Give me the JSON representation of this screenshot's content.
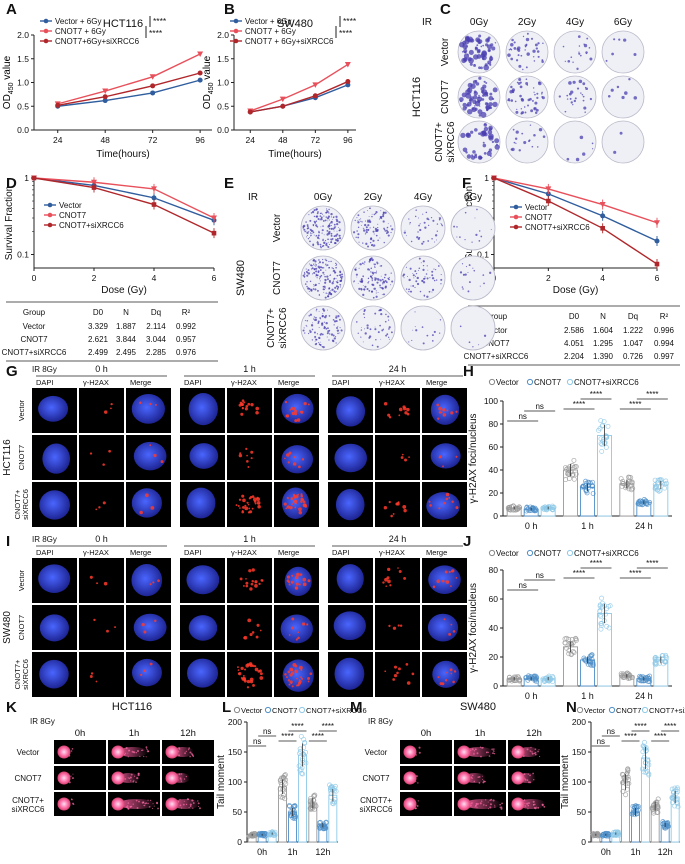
{
  "colors": {
    "vector": "#2f5d9e",
    "cnot7": "#e8505b",
    "cnot7_si": "#b0272b",
    "bar_vector": "#c8c8c8",
    "bar_cnot7": "#4f8fc8",
    "bar_si": "#8ec9e8",
    "dish_bg": "#eef0f6",
    "colony": "#4b3fb0"
  },
  "panels": {
    "A": "A",
    "B": "B",
    "C": "C",
    "D": "D",
    "E": "E",
    "F": "F",
    "G": "G",
    "H": "H",
    "I": "I",
    "J": "J",
    "K": "K",
    "L": "L",
    "M": "M",
    "N": "N"
  },
  "chart_data": [
    {
      "id": "A",
      "type": "line",
      "title": "HCT116",
      "xlabel": "Time(hours)",
      "ylabel": "OD450 value",
      "x": [
        24,
        48,
        72,
        96
      ],
      "ylim": [
        0,
        2.0
      ],
      "yticks": [
        "0.0",
        "0.5",
        "1.0",
        "1.5",
        "2.0"
      ],
      "series": [
        {
          "name": "Vector + 6Gy",
          "values": [
            0.5,
            0.62,
            0.78,
            1.05
          ]
        },
        {
          "name": "CNOT7 + 6Gy",
          "values": [
            0.55,
            0.82,
            1.12,
            1.6
          ]
        },
        {
          "name": "CNOT7+6Gy+siXRCC6",
          "values": [
            0.52,
            0.7,
            0.93,
            1.2
          ]
        }
      ],
      "annotations": [
        "****",
        "****"
      ]
    },
    {
      "id": "B",
      "type": "line",
      "title": "SW480",
      "xlabel": "Time(hours)",
      "ylabel": "OD450 value",
      "x": [
        24,
        48,
        72,
        96
      ],
      "ylim": [
        0,
        2.0
      ],
      "yticks": [
        "0.0",
        "0.5",
        "1.0",
        "1.5",
        "2.0"
      ],
      "series": [
        {
          "name": "Vector + 6Gy",
          "values": [
            0.38,
            0.5,
            0.68,
            0.95
          ]
        },
        {
          "name": "CNOT7 + 6Gy",
          "values": [
            0.4,
            0.65,
            0.95,
            1.38
          ]
        },
        {
          "name": "CNOT7 + 6Gy+siXRCC6",
          "values": [
            0.38,
            0.5,
            0.72,
            1.02
          ]
        }
      ],
      "annotations": [
        "****",
        "****"
      ]
    },
    {
      "id": "D",
      "type": "line",
      "scale": "log",
      "xlabel": "Dose (Gy)",
      "ylabel": "Survival Fraction",
      "x": [
        0,
        2,
        4,
        6
      ],
      "yticks": [
        "1",
        "0.1"
      ],
      "series": [
        {
          "name": "Vector",
          "values": [
            1,
            0.8,
            0.55,
            0.28
          ]
        },
        {
          "name": "CNOT7",
          "values": [
            1,
            0.88,
            0.72,
            0.3
          ]
        },
        {
          "name": "CNOT7+siXRCC6",
          "values": [
            1,
            0.75,
            0.45,
            0.19
          ]
        }
      ],
      "table": {
        "headers": [
          "Group",
          "D0",
          "N",
          "Dq",
          "R²"
        ],
        "rows": [
          [
            "Vector",
            "3.329",
            "1.887",
            "2.114",
            "0.992"
          ],
          [
            "CNOT7",
            "2.621",
            "3.844",
            "3.044",
            "0.957"
          ],
          [
            "CNOT7+siXRCC6",
            "2.499",
            "2.495",
            "2.285",
            "0.976"
          ]
        ]
      }
    },
    {
      "id": "F",
      "type": "line",
      "scale": "log",
      "xlabel": "Dose (Gy)",
      "ylabel": "Survival Fraction",
      "x": [
        0,
        2,
        4,
        6
      ],
      "yticks": [
        "1",
        "0.1"
      ],
      "series": [
        {
          "name": "Vector",
          "values": [
            1,
            0.62,
            0.32,
            0.15
          ]
        },
        {
          "name": "CNOT7",
          "values": [
            1,
            0.72,
            0.45,
            0.26
          ]
        },
        {
          "name": "CNOT7+siXRCC6",
          "values": [
            1,
            0.5,
            0.22,
            0.075
          ]
        }
      ],
      "table": {
        "headers": [
          "Group",
          "D0",
          "N",
          "Dq",
          "R²"
        ],
        "rows": [
          [
            "Vector",
            "2.586",
            "1.604",
            "1.222",
            "0.996"
          ],
          [
            "CNOT7",
            "4.051",
            "1.295",
            "1.047",
            "0.994"
          ],
          [
            "CNOT7+siXRCC6",
            "2.204",
            "1.390",
            "0.726",
            "0.997"
          ]
        ]
      }
    },
    {
      "id": "H",
      "type": "bar",
      "ylabel": "γ-H2AX foci/nucleus",
      "categories": [
        "0 h",
        "1 h",
        "24 h"
      ],
      "ylim": [
        0,
        100
      ],
      "yticks": [
        "0",
        "20",
        "40",
        "60",
        "80",
        "100"
      ],
      "legend": [
        "Vector",
        "CNOT7",
        "CNOT7+siXRCC6"
      ],
      "series": [
        {
          "name": "Vector",
          "values": [
            7,
            40,
            28
          ]
        },
        {
          "name": "CNOT7",
          "values": [
            6,
            25,
            12
          ]
        },
        {
          "name": "CNOT7+siXRCC6",
          "values": [
            7,
            70,
            27
          ]
        }
      ],
      "sig": [
        "ns",
        "ns",
        "****",
        "****",
        "****",
        "****"
      ]
    },
    {
      "id": "J",
      "type": "bar",
      "ylabel": "γ-H2AX foci/nucleus",
      "categories": [
        "0 h",
        "1 h",
        "24 h"
      ],
      "ylim": [
        0,
        80
      ],
      "yticks": [
        "0",
        "20",
        "40",
        "60",
        "80"
      ],
      "legend": [
        "Vector",
        "CNOT7",
        "CNOT7+siXRCC6"
      ],
      "series": [
        {
          "name": "Vector",
          "values": [
            5,
            27,
            7
          ]
        },
        {
          "name": "CNOT7",
          "values": [
            5,
            18,
            5
          ]
        },
        {
          "name": "CNOT7+siXRCC6",
          "values": [
            5,
            50,
            18
          ]
        }
      ],
      "sig": [
        "ns",
        "ns",
        "****",
        "****",
        "****",
        "****"
      ]
    },
    {
      "id": "L",
      "type": "bar",
      "ylabel": "Tail moment",
      "categories": [
        "0h",
        "1h",
        "12h"
      ],
      "ylim": [
        0,
        200
      ],
      "yticks": [
        "0",
        "50",
        "100",
        "150",
        "200"
      ],
      "legend": [
        "Vector",
        "CNOT7",
        "CNOT7+siXRCC6"
      ],
      "series": [
        {
          "name": "Vector",
          "values": [
            12,
            92,
            65
          ]
        },
        {
          "name": "CNOT7",
          "values": [
            12,
            50,
            28
          ]
        },
        {
          "name": "CNOT7+siXRCC6",
          "values": [
            14,
            145,
            78
          ]
        }
      ],
      "sig": [
        "ns",
        "ns",
        "****",
        "****",
        "****",
        "****"
      ]
    },
    {
      "id": "N",
      "type": "bar",
      "ylabel": "Tail moment",
      "categories": [
        "0h",
        "1h",
        "12h"
      ],
      "ylim": [
        0,
        200
      ],
      "yticks": [
        "0",
        "50",
        "100",
        "150",
        "200"
      ],
      "legend": [
        "Vector",
        "CNOT7",
        "CNOT7+siXRCC6"
      ],
      "series": [
        {
          "name": "Vector",
          "values": [
            12,
            100,
            60
          ]
        },
        {
          "name": "CNOT7",
          "values": [
            12,
            50,
            28
          ]
        },
        {
          "name": "CNOT7+siXRCC6",
          "values": [
            14,
            140,
            75
          ]
        }
      ],
      "sig": [
        "ns",
        "ns",
        "****",
        "****",
        "****",
        "****"
      ]
    }
  ],
  "colony": {
    "C": {
      "cell": "HCT116",
      "ir": "IR",
      "doses": [
        "0Gy",
        "2Gy",
        "4Gy",
        "6Gy"
      ],
      "rows": [
        "Vector",
        "CNOT7",
        "CNOT7+",
        "siXRCC6"
      ]
    },
    "E": {
      "cell": "SW480",
      "ir": "IR",
      "doses": [
        "0Gy",
        "2Gy",
        "4Gy",
        "6Gy"
      ],
      "rows": [
        "Vector",
        "CNOT7",
        "CNOT7+",
        "siXRCC6"
      ]
    }
  },
  "if": {
    "G": {
      "cell": "HCT116",
      "ir": "IR 8Gy",
      "times": [
        "0 h",
        "1 h",
        "24 h"
      ],
      "channels": [
        "DAPI",
        "γ-H2AX",
        "Merge"
      ],
      "rows": [
        "Vector",
        "CNOT7",
        "CNOT7+",
        "siXRCC6"
      ]
    },
    "I": {
      "cell": "SW480",
      "ir": "IR 8Gy",
      "times": [
        "0 h",
        "1 h",
        "24 h"
      ],
      "channels": [
        "DAPI",
        "γ-H2AX",
        "Merge"
      ],
      "rows": [
        "Vector",
        "CNOT7",
        "CNOT7+",
        "siXRCC6"
      ]
    }
  },
  "comet": {
    "K": {
      "cell": "HCT116",
      "ir": "IR 8Gy",
      "times": [
        "0h",
        "1h",
        "12h"
      ],
      "rows": [
        "Vector",
        "CNOT7",
        "CNOT7+",
        "siXRCC6"
      ]
    },
    "M": {
      "cell": "SW480",
      "ir": "IR 8Gy",
      "times": [
        "0h",
        "1h",
        "12h"
      ],
      "rows": [
        "Vector",
        "CNOT7",
        "CNOT7+",
        "siXRCC6"
      ]
    }
  }
}
